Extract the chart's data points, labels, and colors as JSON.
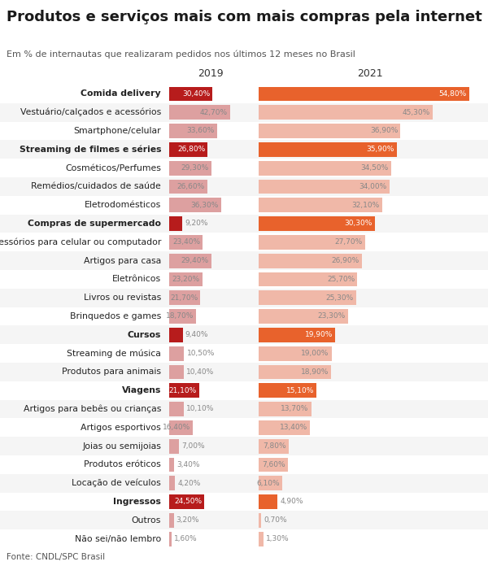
{
  "title": "Produtos e serviços mais com mais compras pela internet",
  "subtitle": "Em % de internautas que realizaram pedidos nos últimos 12 meses no Brasil",
  "source": "Fonte: CNDL/SPC Brasil",
  "col2019_label": "2019",
  "col2021_label": "2021",
  "categories": [
    "Comida delivery",
    "Vestuário/calçados e acessórios",
    "Smartphone/celular",
    "Streaming de filmes e séries",
    "Cosméticos/Perfumes",
    "Remédios/cuidados de saúde",
    "Eletrodomésticos",
    "Compras de supermercado",
    "Acessórios para celular ou computador",
    "Artigos para casa",
    "Eletrônicos",
    "Livros ou revistas",
    "Brinquedos e games",
    "Cursos",
    "Streaming de música",
    "Produtos para animais",
    "Viagens",
    "Artigos para bebês ou crianças",
    "Artigos esportivos",
    "Joias ou semijoias",
    "Produtos eróticos",
    "Locação de veículos",
    "Ingressos",
    "Outros",
    "Não sei/não lembro"
  ],
  "bold_categories": [
    "Comida delivery",
    "Streaming de filmes e séries",
    "Compras de supermercado",
    "Cursos",
    "Viagens",
    "Ingressos"
  ],
  "values_2019": [
    30.4,
    42.7,
    33.6,
    26.8,
    29.3,
    26.6,
    36.3,
    9.2,
    23.4,
    29.4,
    23.2,
    21.7,
    18.7,
    9.4,
    10.5,
    10.4,
    21.1,
    10.1,
    16.4,
    7.0,
    3.4,
    4.2,
    24.5,
    3.2,
    1.6
  ],
  "values_2021": [
    54.8,
    45.3,
    36.9,
    35.9,
    34.5,
    34.0,
    32.1,
    30.3,
    27.7,
    26.9,
    25.7,
    25.3,
    23.3,
    19.9,
    19.0,
    18.9,
    15.1,
    13.7,
    13.4,
    7.8,
    7.6,
    6.1,
    4.9,
    0.7,
    1.3
  ],
  "bar_color_2019_bold": "#b71c1c",
  "bar_color_2019_normal": "#dda0a0",
  "bar_color_2021_bold": "#e8622c",
  "bar_color_2021_normal": "#f0b8a8",
  "bar_text_color_bold": "#ffffff",
  "bar_text_color_normal": "#888888",
  "bg_color": "#ffffff",
  "row_alt_color": "#f5f5f5",
  "title_color": "#1a1a1a",
  "subtitle_color": "#555555",
  "label_color": "#222222",
  "max_bar_width": 58.0,
  "figsize": [
    6.0,
    6.96
  ],
  "dpi": 100
}
